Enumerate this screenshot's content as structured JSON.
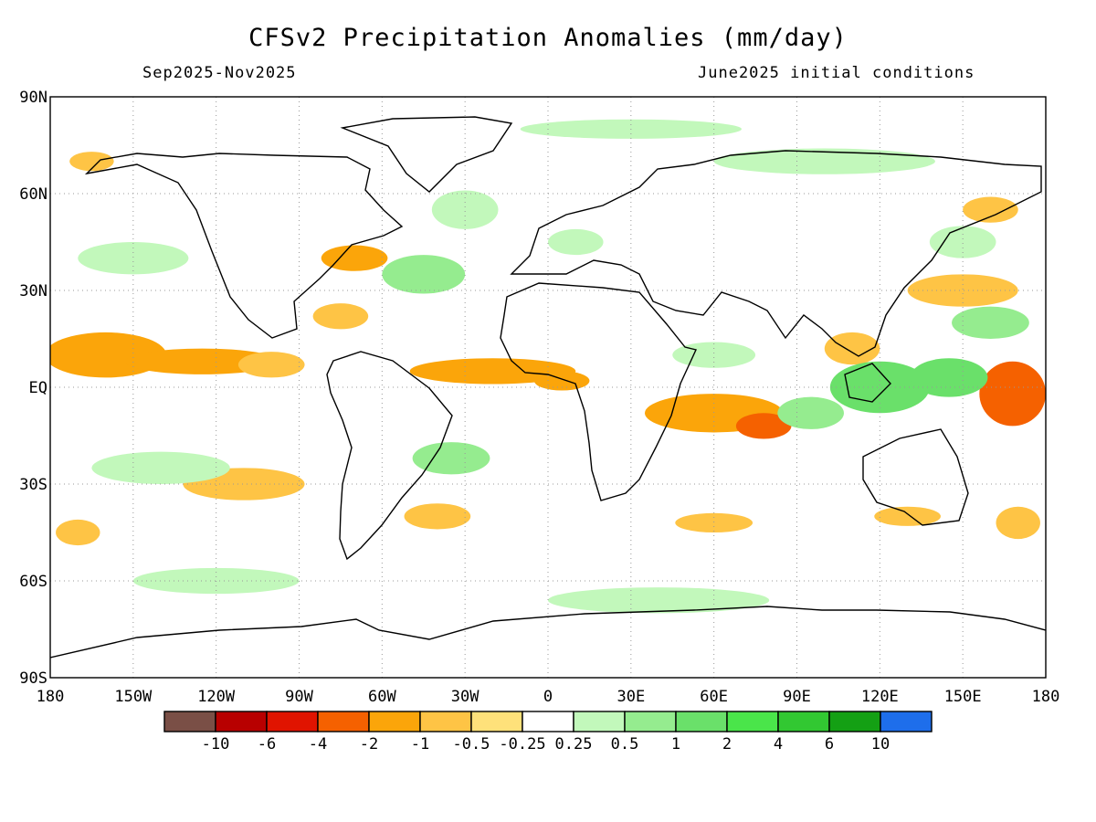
{
  "title": "CFSv2 Precipitation Anomalies (mm/day)",
  "subtitle_left": "Sep2025-Nov2025",
  "subtitle_right": "June2025 initial conditions",
  "map": {
    "lon_range": [
      -180,
      180
    ],
    "lat_range": [
      -90,
      90
    ],
    "grid": "dotted",
    "lon_ticks": [
      {
        "v": -180,
        "label": "180"
      },
      {
        "v": -150,
        "label": "150W"
      },
      {
        "v": -120,
        "label": "120W"
      },
      {
        "v": -90,
        "label": "90W"
      },
      {
        "v": -60,
        "label": "60W"
      },
      {
        "v": -30,
        "label": "30W"
      },
      {
        "v": 0,
        "label": "0"
      },
      {
        "v": 30,
        "label": "30E"
      },
      {
        "v": 60,
        "label": "60E"
      },
      {
        "v": 90,
        "label": "90E"
      },
      {
        "v": 120,
        "label": "120E"
      },
      {
        "v": 150,
        "label": "150E"
      },
      {
        "v": 180,
        "label": "180"
      }
    ],
    "lat_ticks": [
      {
        "v": 90,
        "label": "90N"
      },
      {
        "v": 60,
        "label": "60N"
      },
      {
        "v": 30,
        "label": "30N"
      },
      {
        "v": 0,
        "label": "EQ"
      },
      {
        "v": -30,
        "label": "30S"
      },
      {
        "v": -60,
        "label": "60S"
      },
      {
        "v": -90,
        "label": "90S"
      }
    ]
  },
  "colorbar": {
    "colors": [
      "#7a4f46",
      "#b80000",
      "#e01400",
      "#f56100",
      "#fba50a",
      "#fec445",
      "#fee17a",
      "#ffffff",
      "#c2f8bb",
      "#95ec8f",
      "#6ae06a",
      "#4ae54a",
      "#32c832",
      "#14a014",
      "#1e6eeb"
    ],
    "labels": [
      "-10",
      "-6",
      "-4",
      "-2",
      "-1",
      "-0.5",
      "-0.25",
      "0.25",
      "0.5",
      "1",
      "2",
      "4",
      "6",
      "10"
    ]
  },
  "anomaly_regions": [
    {
      "lon": -160,
      "lat": 10,
      "rx": 22,
      "ry": 7,
      "v": -1
    },
    {
      "lon": -125,
      "lat": 8,
      "rx": 28,
      "ry": 4,
      "v": -1
    },
    {
      "lon": -100,
      "lat": 7,
      "rx": 12,
      "ry": 4,
      "v": -0.5
    },
    {
      "lon": -20,
      "lat": 5,
      "rx": 30,
      "ry": 4,
      "v": -1
    },
    {
      "lon": 5,
      "lat": 2,
      "rx": 10,
      "ry": 3,
      "v": -1
    },
    {
      "lon": 60,
      "lat": -8,
      "rx": 25,
      "ry": 6,
      "v": -1
    },
    {
      "lon": 78,
      "lat": -12,
      "rx": 10,
      "ry": 4,
      "v": -2
    },
    {
      "lon": 168,
      "lat": -2,
      "rx": 12,
      "ry": 10,
      "v": -2
    },
    {
      "lon": -70,
      "lat": 40,
      "rx": 12,
      "ry": 4,
      "v": -1
    },
    {
      "lon": -75,
      "lat": 22,
      "rx": 10,
      "ry": 4,
      "v": -0.5
    },
    {
      "lon": -110,
      "lat": -30,
      "rx": 22,
      "ry": 5,
      "v": -0.5
    },
    {
      "lon": -40,
      "lat": -40,
      "rx": 12,
      "ry": 4,
      "v": -0.5
    },
    {
      "lon": 60,
      "lat": -42,
      "rx": 14,
      "ry": 3,
      "v": -0.5
    },
    {
      "lon": 150,
      "lat": 30,
      "rx": 20,
      "ry": 5,
      "v": -0.5
    },
    {
      "lon": 160,
      "lat": 55,
      "rx": 10,
      "ry": 4,
      "v": -0.5
    },
    {
      "lon": 170,
      "lat": -42,
      "rx": 8,
      "ry": 5,
      "v": -0.5
    },
    {
      "lon": 110,
      "lat": 12,
      "rx": 10,
      "ry": 5,
      "v": -0.5
    },
    {
      "lon": -170,
      "lat": -45,
      "rx": 8,
      "ry": 4,
      "v": -0.5
    },
    {
      "lon": -165,
      "lat": 70,
      "rx": 8,
      "ry": 3,
      "v": -0.5
    },
    {
      "lon": 130,
      "lat": -40,
      "rx": 12,
      "ry": 3,
      "v": -0.5
    },
    {
      "lon": 120,
      "lat": 0,
      "rx": 18,
      "ry": 8,
      "v": 2
    },
    {
      "lon": 145,
      "lat": 3,
      "rx": 14,
      "ry": 6,
      "v": 2
    },
    {
      "lon": 95,
      "lat": -8,
      "rx": 12,
      "ry": 5,
      "v": 1
    },
    {
      "lon": 160,
      "lat": 20,
      "rx": 14,
      "ry": 5,
      "v": 1
    },
    {
      "lon": -45,
      "lat": 35,
      "rx": 15,
      "ry": 6,
      "v": 1
    },
    {
      "lon": -35,
      "lat": -22,
      "rx": 14,
      "ry": 5,
      "v": 1
    },
    {
      "lon": -140,
      "lat": -25,
      "rx": 25,
      "ry": 5,
      "v": 0.5
    },
    {
      "lon": -120,
      "lat": -60,
      "rx": 30,
      "ry": 4,
      "v": 0.5
    },
    {
      "lon": 40,
      "lat": -66,
      "rx": 40,
      "ry": 4,
      "v": 0.5
    },
    {
      "lon": 30,
      "lat": 80,
      "rx": 40,
      "ry": 3,
      "v": 0.5
    },
    {
      "lon": 100,
      "lat": 70,
      "rx": 40,
      "ry": 4,
      "v": 0.5
    },
    {
      "lon": -150,
      "lat": 40,
      "rx": 20,
      "ry": 5,
      "v": 0.5
    },
    {
      "lon": -30,
      "lat": 55,
      "rx": 12,
      "ry": 6,
      "v": 0.5
    },
    {
      "lon": 60,
      "lat": 10,
      "rx": 15,
      "ry": 4,
      "v": 0.5
    },
    {
      "lon": 150,
      "lat": 45,
      "rx": 12,
      "ry": 5,
      "v": 0.5
    },
    {
      "lon": 10,
      "lat": 45,
      "rx": 10,
      "ry": 4,
      "v": 0.5
    }
  ]
}
